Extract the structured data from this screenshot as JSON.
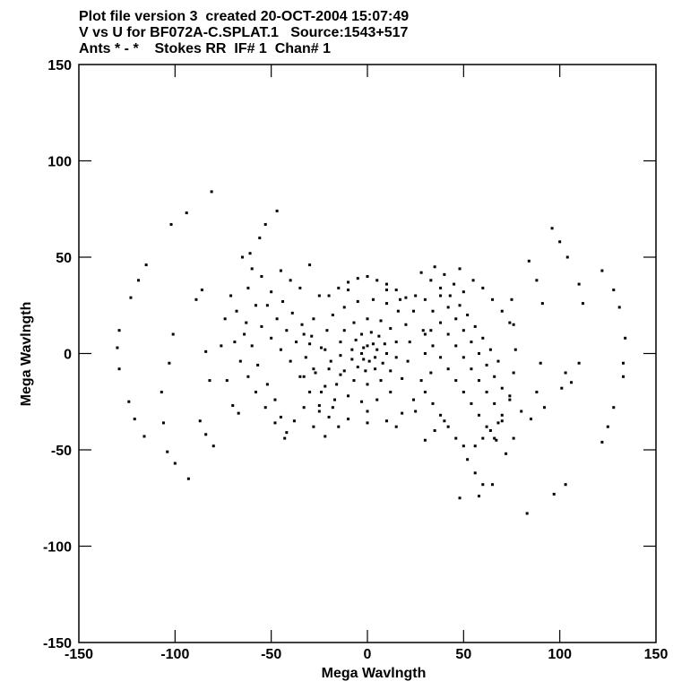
{
  "header": {
    "line1": "Plot file version 3  created 20-OCT-2004 15:07:49",
    "line2": "V vs U for BF072A-C.SPLAT.1   Source:1543+517",
    "line3": "Ants * - *    Stokes RR  IF# 1  Chan# 1"
  },
  "chart_data": {
    "type": "scatter",
    "xlabel": "Mega Wavlngth",
    "ylabel": "Mega Wavlngth",
    "xlim": [
      -150,
      150
    ],
    "ylim": [
      -150,
      150
    ],
    "xticks": [
      -150,
      -100,
      -50,
      0,
      50,
      100,
      150
    ],
    "yticks": [
      -150,
      -100,
      -50,
      0,
      50,
      100,
      150
    ],
    "xtick_labels": [
      "-150",
      "-100",
      "-50",
      "0",
      "50",
      "100",
      "150"
    ],
    "ytick_labels": [
      "-150",
      "-100",
      "-50",
      "0",
      "50",
      "100",
      "150"
    ],
    "marker_color": "#000000",
    "series": [
      {
        "values": [
          [
            -129,
            12
          ],
          [
            -130,
            3
          ],
          [
            -129,
            -8
          ],
          [
            -124,
            -25
          ],
          [
            -121,
            -34
          ],
          [
            -116,
            -43
          ],
          [
            -123,
            29
          ],
          [
            -119,
            38
          ],
          [
            -115,
            46
          ],
          [
            -102,
            67
          ],
          [
            -94,
            73
          ],
          [
            -81,
            84
          ],
          [
            -104,
            -51
          ],
          [
            -100,
            -57
          ],
          [
            -93,
            -65
          ],
          [
            -107,
            -20
          ],
          [
            -106,
            -36
          ],
          [
            -103,
            -5
          ],
          [
            -101,
            10
          ],
          [
            -61,
            52
          ],
          [
            -56,
            60
          ],
          [
            -53,
            67
          ],
          [
            -47,
            74
          ],
          [
            -65,
            50
          ],
          [
            -89,
            28
          ],
          [
            -86,
            33
          ],
          [
            -84,
            1
          ],
          [
            -82,
            -14
          ],
          [
            -87,
            -35
          ],
          [
            -84,
            -42
          ],
          [
            -80,
            -48
          ],
          [
            -71,
            30
          ],
          [
            -74,
            18
          ],
          [
            -76,
            4
          ],
          [
            -73,
            -14
          ],
          [
            -70,
            -27
          ],
          [
            -67,
            -31
          ],
          [
            -60,
            44
          ],
          [
            -55,
            40
          ],
          [
            -62,
            34
          ],
          [
            -58,
            25
          ],
          [
            -50,
            32
          ],
          [
            -45,
            43
          ],
          [
            -40,
            38
          ],
          [
            -35,
            34
          ],
          [
            -30,
            46
          ],
          [
            -64,
            10
          ],
          [
            -60,
            4
          ],
          [
            -57,
            -6
          ],
          [
            -52,
            -16
          ],
          [
            -48,
            -24
          ],
          [
            -45,
            -33
          ],
          [
            -42,
            -41
          ],
          [
            -38,
            -35
          ],
          [
            -33,
            -28
          ],
          [
            -28,
            -38
          ],
          [
            -22,
            -43
          ],
          [
            -68,
            22
          ],
          [
            -63,
            16
          ],
          [
            -55,
            14
          ],
          [
            -50,
            8
          ],
          [
            -45,
            2
          ],
          [
            -40,
            -4
          ],
          [
            -35,
            -12
          ],
          [
            -30,
            -20
          ],
          [
            -25,
            -27
          ],
          [
            -20,
            -33
          ],
          [
            -52,
            25
          ],
          [
            -47,
            18
          ],
          [
            -42,
            12
          ],
          [
            -37,
            6
          ],
          [
            -32,
            -2
          ],
          [
            -27,
            -10
          ],
          [
            -22,
            -17
          ],
          [
            -17,
            -24
          ],
          [
            -44,
            27
          ],
          [
            -39,
            21
          ],
          [
            -34,
            15
          ],
          [
            -29,
            9
          ],
          [
            -24,
            3
          ],
          [
            -19,
            -4
          ],
          [
            -14,
            -11
          ],
          [
            -58,
            -20
          ],
          [
            -53,
            -28
          ],
          [
            -48,
            -36
          ],
          [
            -43,
            -44
          ],
          [
            -62,
            -12
          ],
          [
            -66,
            -4
          ],
          [
            -69,
            6
          ],
          [
            -20,
            30
          ],
          [
            -15,
            34
          ],
          [
            -10,
            37
          ],
          [
            -5,
            39
          ],
          [
            0,
            40
          ],
          [
            5,
            38
          ],
          [
            10,
            36
          ],
          [
            15,
            33
          ],
          [
            20,
            29
          ],
          [
            -28,
            18
          ],
          [
            -30,
            5
          ],
          [
            -28,
            -8
          ],
          [
            -24,
            -20
          ],
          [
            -18,
            -28
          ],
          [
            -10,
            -34
          ],
          [
            0,
            -36
          ],
          [
            10,
            -35
          ],
          [
            18,
            -31
          ],
          [
            24,
            -24
          ],
          [
            28,
            -14
          ],
          [
            30,
            0
          ],
          [
            29,
            12
          ],
          [
            24,
            22
          ],
          [
            17,
            28
          ],
          [
            -18,
            20
          ],
          [
            -12,
            24
          ],
          [
            -5,
            27
          ],
          [
            3,
            28
          ],
          [
            10,
            26
          ],
          [
            16,
            22
          ],
          [
            20,
            15
          ],
          [
            22,
            6
          ],
          [
            21,
            -4
          ],
          [
            18,
            -13
          ],
          [
            12,
            -20
          ],
          [
            5,
            -24
          ],
          [
            -3,
            -25
          ],
          [
            -10,
            -22
          ],
          [
            -16,
            -16
          ],
          [
            -20,
            -8
          ],
          [
            -22,
            2
          ],
          [
            -21,
            12
          ],
          [
            -12,
            12
          ],
          [
            -7,
            16
          ],
          [
            0,
            18
          ],
          [
            7,
            17
          ],
          [
            12,
            13
          ],
          [
            15,
            6
          ],
          [
            15,
            -2
          ],
          [
            12,
            -9
          ],
          [
            7,
            -14
          ],
          [
            0,
            -16
          ],
          [
            -7,
            -14
          ],
          [
            -12,
            -9
          ],
          [
            -14,
            -1
          ],
          [
            -14,
            6
          ],
          [
            -6,
            7
          ],
          [
            -3,
            10
          ],
          [
            2,
            11
          ],
          [
            6,
            9
          ],
          [
            9,
            5
          ],
          [
            10,
            0
          ],
          [
            8,
            -5
          ],
          [
            4,
            -8
          ],
          [
            -1,
            -9
          ],
          [
            -5,
            -7
          ],
          [
            -8,
            -3
          ],
          [
            -8,
            2
          ],
          [
            0,
            4
          ],
          [
            3,
            5
          ],
          [
            5,
            2
          ],
          [
            4,
            -2
          ],
          [
            1,
            -4
          ],
          [
            -2,
            -3
          ],
          [
            -3,
            0
          ],
          [
            -2,
            3
          ],
          [
            -25,
            -30
          ],
          [
            -15,
            -38
          ],
          [
            0,
            -30
          ],
          [
            15,
            -38
          ],
          [
            25,
            -30
          ],
          [
            -25,
            30
          ],
          [
            -10,
            33
          ],
          [
            10,
            33
          ],
          [
            25,
            30
          ],
          [
            -33,
            10
          ],
          [
            33,
            -10
          ],
          [
            -33,
            -12
          ],
          [
            33,
            12
          ],
          [
            28,
            42
          ],
          [
            33,
            38
          ],
          [
            38,
            34
          ],
          [
            43,
            30
          ],
          [
            48,
            25
          ],
          [
            52,
            20
          ],
          [
            56,
            14
          ],
          [
            60,
            8
          ],
          [
            64,
            2
          ],
          [
            68,
            -4
          ],
          [
            35,
            45
          ],
          [
            40,
            41
          ],
          [
            45,
            36
          ],
          [
            50,
            32
          ],
          [
            48,
            44
          ],
          [
            55,
            38
          ],
          [
            60,
            34
          ],
          [
            65,
            28
          ],
          [
            70,
            22
          ],
          [
            74,
            16
          ],
          [
            30,
            28
          ],
          [
            34,
            22
          ],
          [
            38,
            16
          ],
          [
            42,
            10
          ],
          [
            46,
            4
          ],
          [
            50,
            -2
          ],
          [
            54,
            -8
          ],
          [
            58,
            -14
          ],
          [
            62,
            -20
          ],
          [
            66,
            -26
          ],
          [
            70,
            -32
          ],
          [
            38,
            30
          ],
          [
            42,
            24
          ],
          [
            46,
            18
          ],
          [
            50,
            12
          ],
          [
            54,
            6
          ],
          [
            58,
            0
          ],
          [
            62,
            -6
          ],
          [
            66,
            -12
          ],
          [
            70,
            -18
          ],
          [
            74,
            -24
          ],
          [
            30,
            10
          ],
          [
            34,
            4
          ],
          [
            38,
            -2
          ],
          [
            42,
            -8
          ],
          [
            46,
            -14
          ],
          [
            50,
            -20
          ],
          [
            54,
            -26
          ],
          [
            58,
            -32
          ],
          [
            62,
            -38
          ],
          [
            66,
            -44
          ],
          [
            30,
            -20
          ],
          [
            34,
            -26
          ],
          [
            38,
            -32
          ],
          [
            42,
            -38
          ],
          [
            46,
            -44
          ],
          [
            50,
            -48
          ],
          [
            56,
            -48
          ],
          [
            60,
            -44
          ],
          [
            64,
            -40
          ],
          [
            68,
            -36
          ],
          [
            75,
            28
          ],
          [
            76,
            15
          ],
          [
            77,
            2
          ],
          [
            76,
            -10
          ],
          [
            74,
            -22
          ],
          [
            70,
            -35
          ],
          [
            67,
            -45
          ],
          [
            72,
            -52
          ],
          [
            76,
            -44
          ],
          [
            80,
            -30
          ],
          [
            52,
            -55
          ],
          [
            56,
            -62
          ],
          [
            60,
            -68
          ],
          [
            48,
            -75
          ],
          [
            30,
            -45
          ],
          [
            35,
            -40
          ],
          [
            40,
            -35
          ],
          [
            84,
            48
          ],
          [
            88,
            38
          ],
          [
            91,
            26
          ],
          [
            90,
            -5
          ],
          [
            88,
            -20
          ],
          [
            92,
            -28
          ],
          [
            85,
            -34
          ],
          [
            83,
            -83
          ],
          [
            96,
            65
          ],
          [
            100,
            58
          ],
          [
            104,
            50
          ],
          [
            110,
            36
          ],
          [
            112,
            26
          ],
          [
            110,
            -5
          ],
          [
            106,
            -15
          ],
          [
            103,
            -10
          ],
          [
            101,
            -18
          ],
          [
            122,
            43
          ],
          [
            128,
            33
          ],
          [
            131,
            24
          ],
          [
            134,
            8
          ],
          [
            133,
            -5
          ],
          [
            133,
            -12
          ],
          [
            128,
            -28
          ],
          [
            125,
            -38
          ],
          [
            122,
            -46
          ],
          [
            103,
            -68
          ],
          [
            97,
            -73
          ],
          [
            58,
            -74
          ],
          [
            65,
            -68
          ]
        ]
      }
    ]
  }
}
